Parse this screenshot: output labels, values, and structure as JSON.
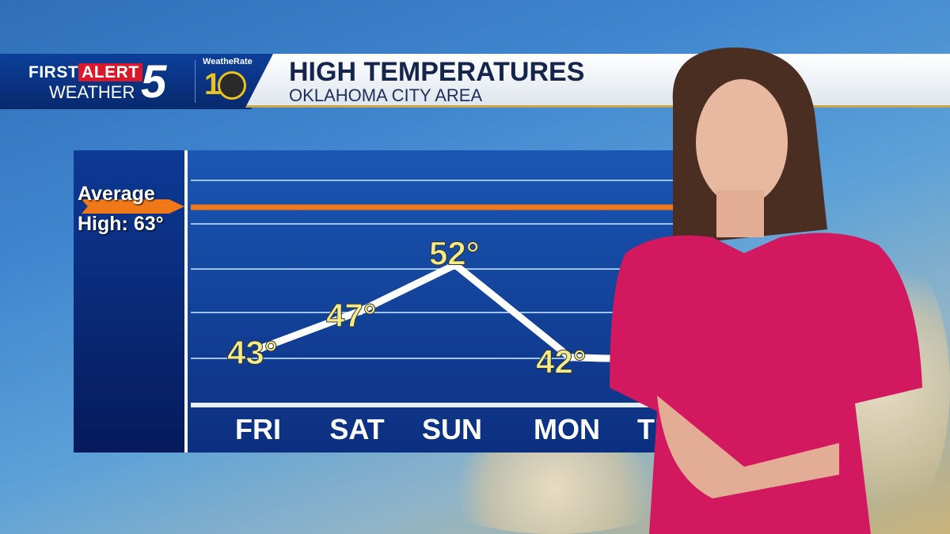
{
  "header": {
    "logo_first": "FIRST",
    "logo_alert": "ALERT",
    "logo_weather": "WEATHER",
    "logo_number": "5",
    "weatherate": "WeatheRate",
    "weatherate_years": "10",
    "title": "HIGH TEMPERATURES",
    "subtitle": "OKLAHOMA CITY AREA"
  },
  "chart_data": {
    "type": "line",
    "categories": [
      "FRI",
      "SAT",
      "SUN",
      "MON",
      "TU"
    ],
    "values": [
      43,
      47,
      52,
      42,
      null
    ],
    "labels": [
      "43°",
      "47°",
      "52°",
      "42°",
      ""
    ],
    "reference_line": {
      "label_line1": "Average",
      "label_line2": "High: 63°",
      "value": 63,
      "color": "#f07818"
    },
    "line_color": "#ffffff",
    "label_color": "#f3ec8a",
    "grid": true
  }
}
